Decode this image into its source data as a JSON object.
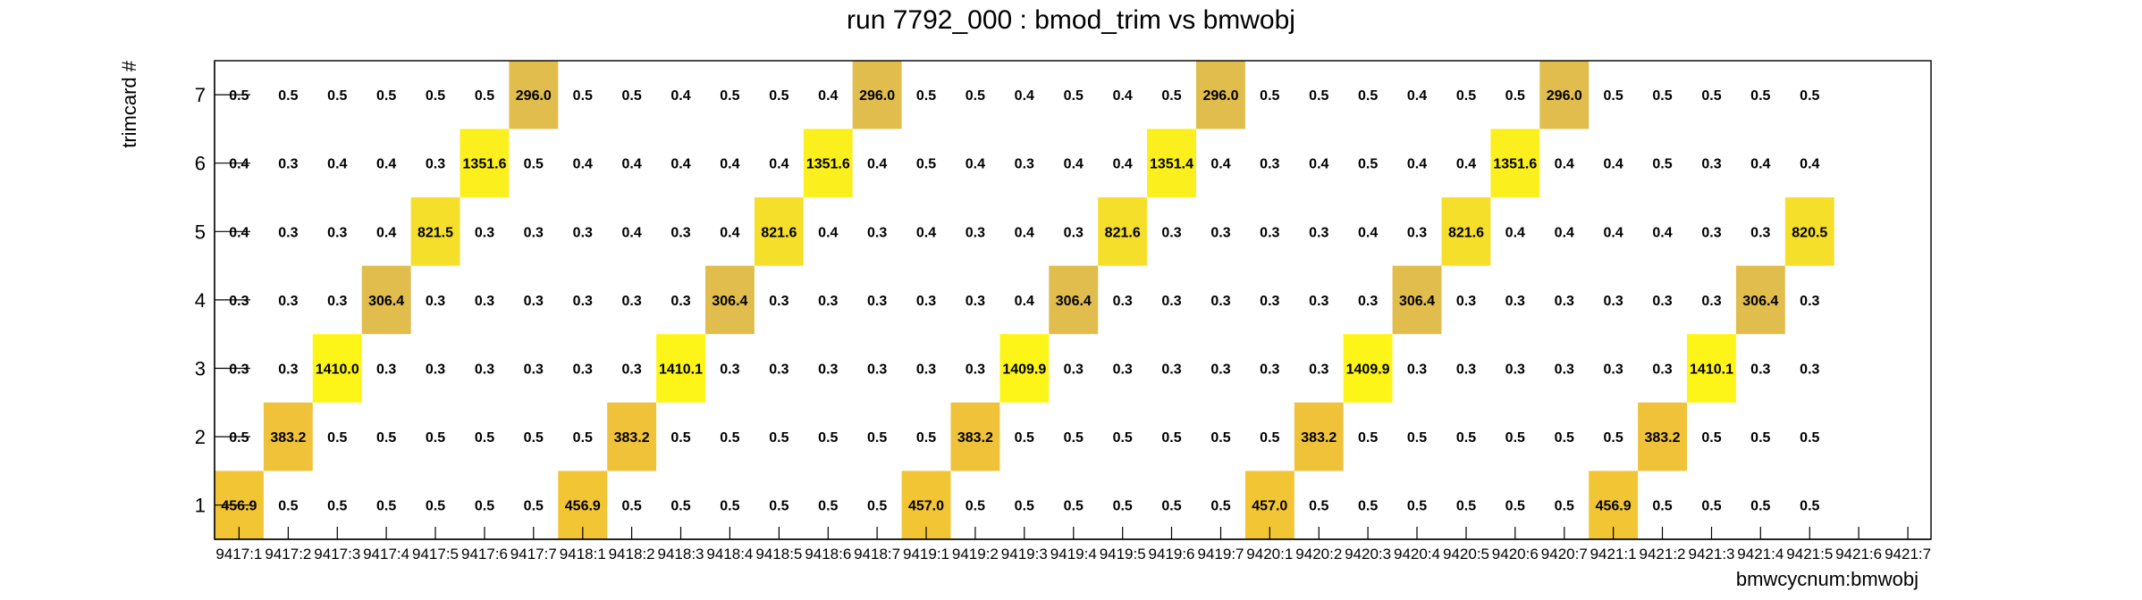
{
  "chart_data": {
    "type": "heatmap",
    "title": "run 7792_000 : bmod_trim vs bmwobj",
    "xlabel": "bmwcycnum:bmwobj",
    "ylabel": "trimcard #",
    "grid": false,
    "x_categories": [
      "9417:1",
      "9417:2",
      "9417:3",
      "9417:4",
      "9417:5",
      "9417:6",
      "9417:7",
      "9418:1",
      "9418:2",
      "9418:3",
      "9418:4",
      "9418:5",
      "9418:6",
      "9418:7",
      "9419:1",
      "9419:2",
      "9419:3",
      "9419:4",
      "9419:5",
      "9419:6",
      "9419:7",
      "9420:1",
      "9420:2",
      "9420:3",
      "9420:4",
      "9420:5",
      "9420:6",
      "9420:7",
      "9421:1",
      "9421:2",
      "9421:3",
      "9421:4",
      "9421:5",
      "9421:6",
      "9421:7"
    ],
    "y_categories": [
      "1",
      "2",
      "3",
      "4",
      "5",
      "6",
      "7"
    ],
    "rows": {
      "1": [
        "456.9",
        "0.5",
        "0.5",
        "0.5",
        "0.5",
        "0.5",
        "0.5",
        "456.9",
        "0.5",
        "0.5",
        "0.5",
        "0.5",
        "0.5",
        "0.5",
        "457.0",
        "0.5",
        "0.5",
        "0.5",
        "0.5",
        "0.5",
        "0.5",
        "457.0",
        "0.5",
        "0.5",
        "0.5",
        "0.5",
        "0.5",
        "0.5",
        "456.9",
        "0.5",
        "0.5",
        "0.5",
        "0.5",
        null,
        null
      ],
      "2": [
        "0.5",
        "383.2",
        "0.5",
        "0.5",
        "0.5",
        "0.5",
        "0.5",
        "0.5",
        "383.2",
        "0.5",
        "0.5",
        "0.5",
        "0.5",
        "0.5",
        "0.5",
        "383.2",
        "0.5",
        "0.5",
        "0.5",
        "0.5",
        "0.5",
        "0.5",
        "383.2",
        "0.5",
        "0.5",
        "0.5",
        "0.5",
        "0.5",
        "0.5",
        "383.2",
        "0.5",
        "0.5",
        "0.5",
        null,
        null
      ],
      "3": [
        "0.3",
        "0.3",
        "1410.0",
        "0.3",
        "0.3",
        "0.3",
        "0.3",
        "0.3",
        "0.3",
        "1410.1",
        "0.3",
        "0.3",
        "0.3",
        "0.3",
        "0.3",
        "0.3",
        "1409.9",
        "0.3",
        "0.3",
        "0.3",
        "0.3",
        "0.3",
        "0.3",
        "1409.9",
        "0.3",
        "0.3",
        "0.3",
        "0.3",
        "0.3",
        "0.3",
        "1410.1",
        "0.3",
        "0.3",
        null,
        null
      ],
      "4": [
        "0.3",
        "0.3",
        "0.3",
        "306.4",
        "0.3",
        "0.3",
        "0.3",
        "0.3",
        "0.3",
        "0.3",
        "306.4",
        "0.3",
        "0.3",
        "0.3",
        "0.3",
        "0.3",
        "0.4",
        "306.4",
        "0.3",
        "0.3",
        "0.3",
        "0.3",
        "0.3",
        "0.3",
        "306.4",
        "0.3",
        "0.3",
        "0.3",
        "0.3",
        "0.3",
        "0.3",
        "306.4",
        "0.3",
        null,
        null
      ],
      "5": [
        "0.4",
        "0.3",
        "0.3",
        "0.4",
        "821.5",
        "0.3",
        "0.3",
        "0.3",
        "0.4",
        "0.3",
        "0.4",
        "821.6",
        "0.4",
        "0.3",
        "0.4",
        "0.3",
        "0.4",
        "0.3",
        "821.6",
        "0.3",
        "0.3",
        "0.3",
        "0.3",
        "0.4",
        "0.3",
        "821.6",
        "0.4",
        "0.4",
        "0.4",
        "0.4",
        "0.3",
        "0.3",
        "820.5",
        null,
        null
      ],
      "6": [
        "0.4",
        "0.3",
        "0.4",
        "0.4",
        "0.3",
        "1351.6",
        "0.5",
        "0.4",
        "0.4",
        "0.4",
        "0.4",
        "0.4",
        "1351.6",
        "0.4",
        "0.5",
        "0.4",
        "0.3",
        "0.4",
        "0.4",
        "1351.4",
        "0.4",
        "0.3",
        "0.4",
        "0.5",
        "0.4",
        "0.4",
        "1351.6",
        "0.4",
        "0.4",
        "0.5",
        "0.3",
        "0.4",
        "0.4",
        null,
        null
      ],
      "7": [
        "0.5",
        "0.5",
        "0.5",
        "0.5",
        "0.5",
        "0.5",
        "296.0",
        "0.5",
        "0.5",
        "0.4",
        "0.5",
        "0.5",
        "0.4",
        "296.0",
        "0.5",
        "0.5",
        "0.4",
        "0.5",
        "0.4",
        "0.5",
        "296.0",
        "0.5",
        "0.5",
        "0.5",
        "0.4",
        "0.5",
        "0.5",
        "296.0",
        "0.5",
        "0.5",
        "0.5",
        "0.5",
        "0.5",
        null,
        null
      ]
    },
    "colors": {
      "low": "#ffffff",
      "cell_296": "#e0bd4c",
      "cell_306": "#e0bd4c",
      "cell_383": "#f0c23a",
      "cell_457": "#f2c535",
      "cell_821": "#f6df2a",
      "cell_1351": "#fbef1e",
      "cell_1410": "#fdf518"
    }
  }
}
